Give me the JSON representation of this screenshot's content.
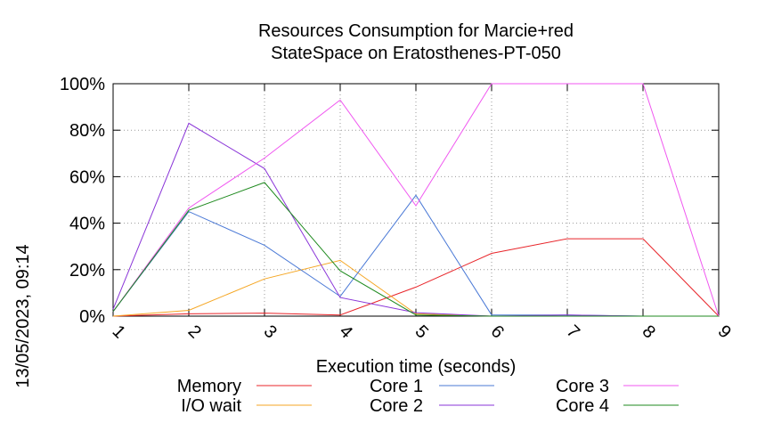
{
  "chart_data": {
    "type": "line",
    "title_line1": "Resources Consumption for Marcie+red",
    "title_line2": "StateSpace on Eratosthenes-PT-050",
    "xlabel": "Execution time (seconds)",
    "ylabel": "",
    "timestamp": "13/05/2023, 09:14",
    "x": [
      1,
      2,
      3,
      4,
      5,
      6,
      7,
      8,
      9
    ],
    "x_tick_labels": [
      "1",
      "2",
      "3",
      "4",
      "5",
      "6",
      "7",
      "8",
      "9"
    ],
    "xlim": [
      1,
      9
    ],
    "ylim": [
      0,
      100
    ],
    "y_ticks": [
      0,
      20,
      40,
      60,
      80,
      100
    ],
    "y_tick_labels": [
      "0%",
      "20%",
      "40%",
      "60%",
      "80%",
      "100%"
    ],
    "grid": true,
    "legend_position": "bottom",
    "series": [
      {
        "name": "Memory",
        "color": "#e8252a",
        "values": [
          0,
          1,
          1.3,
          0.5,
          12.5,
          27,
          33.3,
          33.3,
          0
        ]
      },
      {
        "name": "I/O wait",
        "color": "#f5a623",
        "values": [
          0,
          2.5,
          16,
          24,
          1,
          0,
          0,
          0,
          0
        ]
      },
      {
        "name": "Core 1",
        "color": "#4a79d6",
        "values": [
          2,
          45,
          30.5,
          8.5,
          52,
          0.5,
          0.5,
          0,
          0
        ]
      },
      {
        "name": "Core 2",
        "color": "#8a35d8",
        "values": [
          3,
          83,
          63.5,
          8,
          1.5,
          0,
          0.5,
          0,
          0
        ]
      },
      {
        "name": "Core 3",
        "color": "#f057f0",
        "values": [
          2,
          46.5,
          68,
          93,
          47.5,
          100,
          100,
          100,
          0
        ]
      },
      {
        "name": "Core 4",
        "color": "#1f8a1f",
        "values": [
          2,
          45.5,
          57.5,
          19.5,
          0.5,
          0,
          0,
          0,
          0
        ]
      }
    ]
  }
}
